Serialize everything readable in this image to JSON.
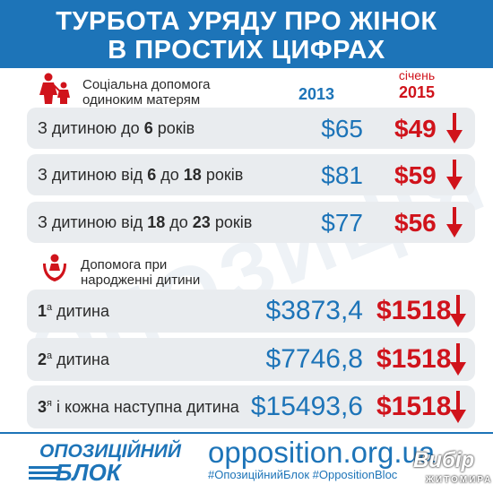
{
  "header": {
    "line1": "ТУРБОТА УРЯДУ ПРО ЖІНОК",
    "line2": "В ПРОСТИХ ЦИФРАХ"
  },
  "watermark_text": "ОПОЗИЦІЯ",
  "section1": {
    "heading_line1": "Соціальна допомога",
    "heading_line2": "одиноким матерям",
    "col_2013": "2013",
    "col_2015_top": "січень",
    "col_2015": "2015",
    "rows": [
      {
        "pre": "З дитиною до ",
        "b1": "6",
        "mid": "",
        "b2": "",
        "post": " років",
        "v2013": "$65",
        "v2015": "$49"
      },
      {
        "pre": "З дитиною від ",
        "b1": "6",
        "mid": " до ",
        "b2": "18",
        "post": " років",
        "v2013": "$81",
        "v2015": "$59"
      },
      {
        "pre": "З дитиною від ",
        "b1": "18",
        "mid": " до ",
        "b2": "23",
        "post": " років",
        "v2013": "$77",
        "v2015": "$56"
      }
    ]
  },
  "section2": {
    "heading_line1": "Допомога при",
    "heading_line2": "народженні дитини",
    "rows": [
      {
        "num": "1",
        "sup": "а",
        "text": " дитина",
        "v2013": "$3873,4",
        "v2015": "$1518"
      },
      {
        "num": "2",
        "sup": "а",
        "text": " дитина",
        "v2013": "$7746,8",
        "v2015": "$1518"
      },
      {
        "num": "3",
        "sup": "я",
        "text": " і кожна наступна дитина",
        "v2013": "$15493,6",
        "v2015": "$1518"
      }
    ]
  },
  "footer": {
    "logo_line1": "ОПОЗИЦІЙНИЙ",
    "logo_line2": "БЛОК",
    "site": "opposition.org.ua",
    "tags": "#ОпозиційнийБлок #OppositionBloc",
    "stamp_line1": "Вибір",
    "stamp_line2": "ЖИТОМИРА"
  },
  "colors": {
    "blue": "#1d74b8",
    "red": "#d0131b",
    "row_bg": "#e9ecef"
  },
  "icons": [
    "mother-child-icon",
    "hands-child-icon",
    "down-arrow-icon"
  ]
}
